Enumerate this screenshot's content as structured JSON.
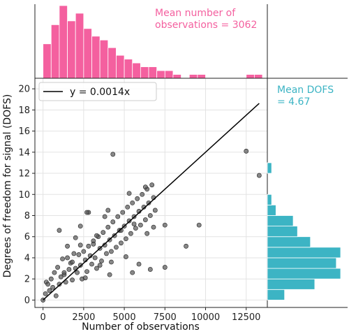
{
  "chart_data": [
    {
      "type": "scatter",
      "xlabel": "Number of observations",
      "ylabel": "Degrees of freedom for signal (DOFS)",
      "xlim": [
        -500,
        13800
      ],
      "ylim": [
        -0.7,
        21
      ],
      "x_ticks": [
        0,
        2500,
        5000,
        7500,
        10000,
        12500
      ],
      "x_tick_labels": [
        "0",
        "2500",
        "5000",
        "7500",
        "10000",
        "12500"
      ],
      "y_ticks": [
        0,
        2,
        4,
        6,
        8,
        10,
        12,
        14,
        16,
        18,
        20
      ],
      "y_tick_labels": [
        "0",
        "2",
        "4",
        "6",
        "8",
        "10",
        "12",
        "14",
        "16",
        "18",
        "20"
      ],
      "grid": true,
      "legend": {
        "label": "y = 0.0014x",
        "position": "top-left"
      },
      "fit_line": {
        "slope": 0.0014,
        "x_range": [
          0,
          13300
        ]
      },
      "colors": {
        "points": "#555555",
        "line": "#000000"
      },
      "points": [
        [
          0,
          0
        ],
        [
          150,
          0.6
        ],
        [
          200,
          1.7
        ],
        [
          300,
          1.5
        ],
        [
          400,
          0.9
        ],
        [
          500,
          2.0
        ],
        [
          600,
          1.2
        ],
        [
          700,
          2.6
        ],
        [
          800,
          0.4
        ],
        [
          900,
          3.1
        ],
        [
          1000,
          1.5
        ],
        [
          1100,
          2.2
        ],
        [
          1200,
          3.9
        ],
        [
          1300,
          2.4
        ],
        [
          1400,
          1.7
        ],
        [
          1500,
          4.0
        ],
        [
          1600,
          2.9
        ],
        [
          1700,
          3.5
        ],
        [
          1800,
          1.9
        ],
        [
          1900,
          4.4
        ],
        [
          2000,
          3.0
        ],
        [
          2100,
          2.6
        ],
        [
          2200,
          4.3
        ],
        [
          2300,
          3.3
        ],
        [
          2400,
          2.0
        ],
        [
          2500,
          4.6
        ],
        [
          2600,
          3.8
        ],
        [
          2700,
          2.7
        ],
        [
          2800,
          5.1
        ],
        [
          2900,
          4.2
        ],
        [
          3000,
          3.4
        ],
        [
          3100,
          5.6
        ],
        [
          3200,
          4.0
        ],
        [
          3300,
          3.0
        ],
        [
          3400,
          6.0
        ],
        [
          3500,
          4.9
        ],
        [
          3600,
          3.7
        ],
        [
          3700,
          6.4
        ],
        [
          3800,
          5.2
        ],
        [
          3900,
          4.4
        ],
        [
          4000,
          6.9
        ],
        [
          4100,
          5.7
        ],
        [
          4200,
          4.6
        ],
        [
          4300,
          7.4
        ],
        [
          4400,
          6.1
        ],
        [
          4500,
          5.0
        ],
        [
          4600,
          7.9
        ],
        [
          4700,
          6.6
        ],
        [
          4800,
          5.4
        ],
        [
          4900,
          8.3
        ],
        [
          5000,
          7.0
        ],
        [
          5100,
          5.8
        ],
        [
          5200,
          8.8
        ],
        [
          5300,
          7.5
        ],
        [
          5400,
          6.3
        ],
        [
          5500,
          9.2
        ],
        [
          5600,
          7.9
        ],
        [
          5700,
          6.8
        ],
        [
          5800,
          9.6
        ],
        [
          5900,
          8.4
        ],
        [
          6000,
          7.1
        ],
        [
          6100,
          10.0
        ],
        [
          6200,
          8.8
        ],
        [
          6300,
          7.6
        ],
        [
          6400,
          10.5
        ],
        [
          6500,
          9.2
        ],
        [
          6600,
          8.0
        ],
        [
          6700,
          10.9
        ],
        [
          6800,
          9.7
        ],
        [
          6900,
          8.5
        ],
        [
          1000,
          6.6
        ],
        [
          1500,
          5.1
        ],
        [
          2300,
          7.0
        ],
        [
          2800,
          8.3
        ],
        [
          3300,
          6.1
        ],
        [
          3800,
          7.9
        ],
        [
          4000,
          8.5
        ],
        [
          4800,
          6.6
        ],
        [
          5300,
          10.1
        ],
        [
          5600,
          7.2
        ],
        [
          6300,
          10.7
        ],
        [
          6400,
          6.3
        ],
        [
          6800,
          6.9
        ],
        [
          7500,
          7.1
        ],
        [
          8800,
          5.1
        ],
        [
          9600,
          7.1
        ],
        [
          12500,
          14.1
        ],
        [
          13300,
          11.8
        ],
        [
          4300,
          13.8
        ],
        [
          2300,
          5.2
        ],
        [
          1800,
          3.6
        ],
        [
          1300,
          2.6
        ],
        [
          2600,
          2.1
        ],
        [
          3500,
          3.3
        ],
        [
          4200,
          3.6
        ],
        [
          5100,
          4.1
        ],
        [
          5900,
          3.4
        ],
        [
          6600,
          2.9
        ],
        [
          7500,
          3.1
        ],
        [
          2000,
          5.9
        ],
        [
          3100,
          5.3
        ],
        [
          2700,
          8.3
        ],
        [
          4100,
          2.4
        ],
        [
          5500,
          2.6
        ]
      ]
    },
    {
      "type": "bar",
      "orientation": "vertical",
      "role": "marginal histogram of number of observations",
      "annotation": "Mean number of\nobservations = 3062",
      "color": "#f4609f",
      "bin_edges": [
        0,
        500,
        1000,
        1500,
        2000,
        2500,
        3000,
        3500,
        4000,
        4500,
        5000,
        5500,
        6000,
        6500,
        7000,
        7500,
        8000,
        8500,
        9000,
        9500,
        10000,
        10500,
        11000,
        11500,
        12000,
        12500,
        13000,
        13500
      ],
      "counts": [
        9,
        14,
        19,
        15,
        17,
        13,
        11,
        10,
        8,
        6,
        5,
        4,
        3,
        3,
        2,
        2,
        1,
        0,
        1,
        1,
        0,
        0,
        0,
        0,
        0,
        1,
        1
      ]
    },
    {
      "type": "bar",
      "orientation": "horizontal",
      "role": "marginal histogram of DOFS",
      "annotation": "Mean DOFS\n= 4.67",
      "color": "#3cb4c4",
      "bin_edges": [
        0,
        1,
        2,
        3,
        4,
        5,
        6,
        7,
        8,
        9,
        10,
        11,
        12,
        13,
        14
      ],
      "counts": [
        4,
        11,
        17,
        16,
        17,
        10,
        7,
        6,
        2,
        1,
        0,
        0,
        1,
        0
      ]
    }
  ]
}
